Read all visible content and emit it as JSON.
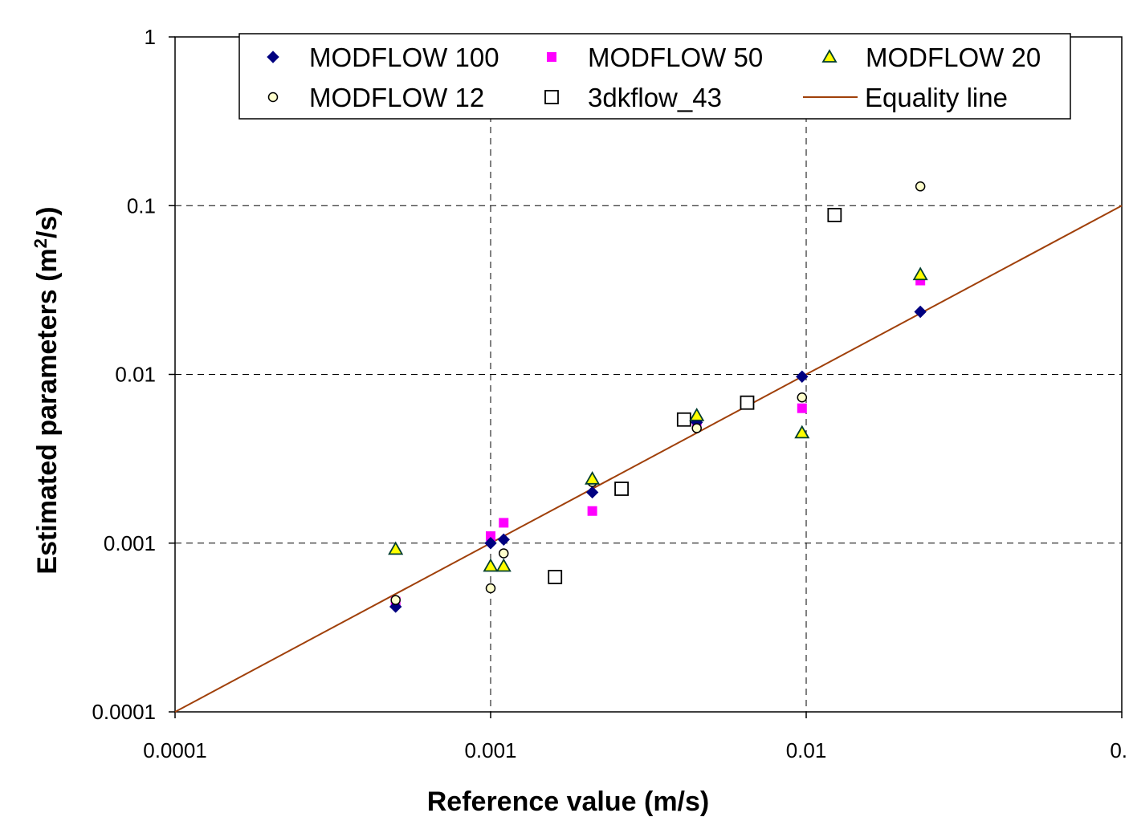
{
  "chart_data": {
    "type": "scatter",
    "xlabel": "Reference value (m/s)",
    "ylabel_main": "Estimated parameters (m",
    "ylabel_sup": "2",
    "ylabel_end": "/s)",
    "x_scale": "log",
    "y_scale": "log",
    "xlim": [
      0.0001,
      0.1
    ],
    "ylim": [
      0.0001,
      1
    ],
    "x_ticks": [
      {
        "value": 0.0001,
        "label": "0.0001"
      },
      {
        "value": 0.001,
        "label": "0.001"
      },
      {
        "value": 0.01,
        "label": "0.01"
      },
      {
        "value": 0.1,
        "label": "0."
      }
    ],
    "y_ticks": [
      {
        "value": 0.0001,
        "label": "0.0001"
      },
      {
        "value": 0.001,
        "label": "0.001"
      },
      {
        "value": 0.01,
        "label": "0.01"
      },
      {
        "value": 0.1,
        "label": "0.1"
      },
      {
        "value": 1,
        "label": "1"
      }
    ],
    "grid": "dashed major gridlines",
    "legend_position": "top",
    "series": [
      {
        "name": "MODFLOW 100",
        "marker": "diamond",
        "color": "#000080",
        "points": [
          [
            0.0005,
            0.00042
          ],
          [
            0.001,
            0.001
          ],
          [
            0.0011,
            0.00105
          ],
          [
            0.0021,
            0.002
          ],
          [
            0.0045,
            0.0052
          ],
          [
            0.0097,
            0.0097
          ],
          [
            0.023,
            0.0235
          ]
        ]
      },
      {
        "name": "MODFLOW 50",
        "marker": "square",
        "color": "#ff00ff",
        "points": [
          [
            0.0005,
            0.00045
          ],
          [
            0.001,
            0.0011
          ],
          [
            0.0011,
            0.00132
          ],
          [
            0.0021,
            0.00155
          ],
          [
            0.0045,
            0.0053
          ],
          [
            0.0097,
            0.0063
          ],
          [
            0.023,
            0.036
          ]
        ]
      },
      {
        "name": "MODFLOW 20",
        "marker": "triangle",
        "color": "#ffff00",
        "points": [
          [
            0.0005,
            0.00092
          ],
          [
            0.001,
            0.00073
          ],
          [
            0.0011,
            0.00073
          ],
          [
            0.0021,
            0.0024
          ],
          [
            0.0045,
            0.0057
          ],
          [
            0.0097,
            0.0045
          ],
          [
            0.023,
            0.039
          ]
        ]
      },
      {
        "name": "MODFLOW 12",
        "marker": "circle",
        "color": "#ffffcc",
        "points": [
          [
            0.0005,
            0.00046
          ],
          [
            0.001,
            0.00054
          ],
          [
            0.0011,
            0.00087
          ],
          [
            0.0021,
            0.0023
          ],
          [
            0.0045,
            0.0048
          ],
          [
            0.0097,
            0.0073
          ],
          [
            0.023,
            0.13
          ]
        ]
      },
      {
        "name": "3dkflow_43",
        "marker": "open-square",
        "color": "#ffffff",
        "points": [
          [
            0.0016,
            0.00063
          ],
          [
            0.0026,
            0.0021
          ],
          [
            0.0041,
            0.0054
          ],
          [
            0.0065,
            0.0068
          ],
          [
            0.0123,
            0.088
          ]
        ]
      },
      {
        "name": "Equality line",
        "marker": "line",
        "color": "#a0400a",
        "points": [
          [
            0.0001,
            0.0001
          ],
          [
            0.1,
            0.1
          ]
        ]
      }
    ]
  }
}
